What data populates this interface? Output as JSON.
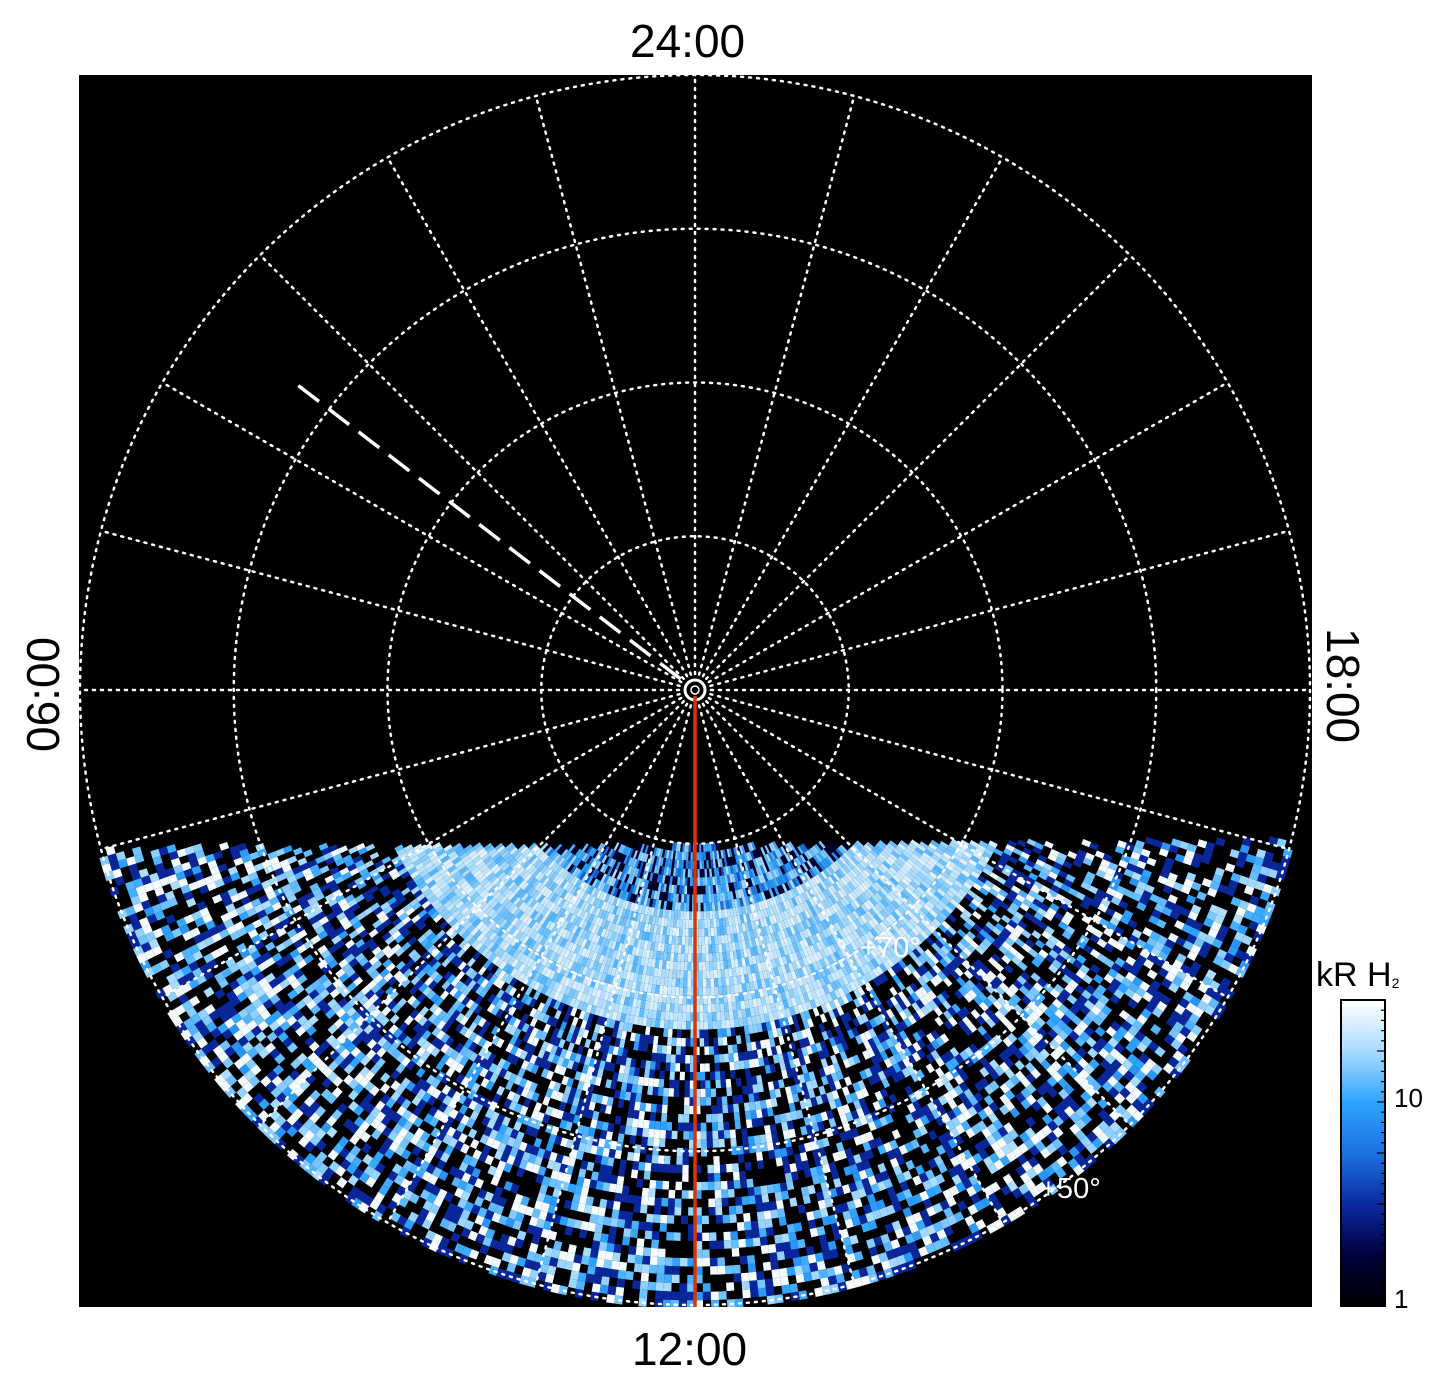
{
  "chart_data": {
    "type": "heatmap",
    "projection": "polar (north-up, local time around the pole)",
    "lt_labels": {
      "top": "24:00",
      "bottom": "12:00",
      "left": "06:00",
      "right": "18:00"
    },
    "lat_labels": [
      "+70°",
      "+50°"
    ],
    "colorbar": {
      "title_main": "kR H",
      "title_sub": "2",
      "scale": "log",
      "range": [
        1,
        30
      ],
      "ticks": [
        {
          "value": 1,
          "label": "1"
        },
        {
          "value": 10,
          "label": "10"
        }
      ],
      "colors": [
        "#000000",
        "#00003c",
        "#0a2aa0",
        "#1c72e2",
        "#2ea4ff",
        "#a8dcff",
        "#ffffff"
      ]
    },
    "grid": true,
    "colatitude_circles_deg": [
      10,
      20,
      30,
      40
    ],
    "meridian_spacing_hours": 1,
    "emission_bands": [
      {
        "feature": "main auroral arc",
        "lt_range_h": [
          7.5,
          16.5
        ],
        "colatitude_deg": 18,
        "intensity_kR": 25
      },
      {
        "feature": "equatorward diffuse emission",
        "lt_range_h": [
          6.3,
          17.7
        ],
        "colatitude_deg": [
          26,
          40
        ],
        "intensity_kR": [
          1,
          30
        ]
      }
    ],
    "markers": [
      {
        "feature": "sub-observer meridian",
        "lt_h": 12,
        "color": "#dd3300"
      },
      {
        "feature": "dashed reference line",
        "lt_h": 3.5,
        "color": "#ffffff"
      }
    ]
  }
}
